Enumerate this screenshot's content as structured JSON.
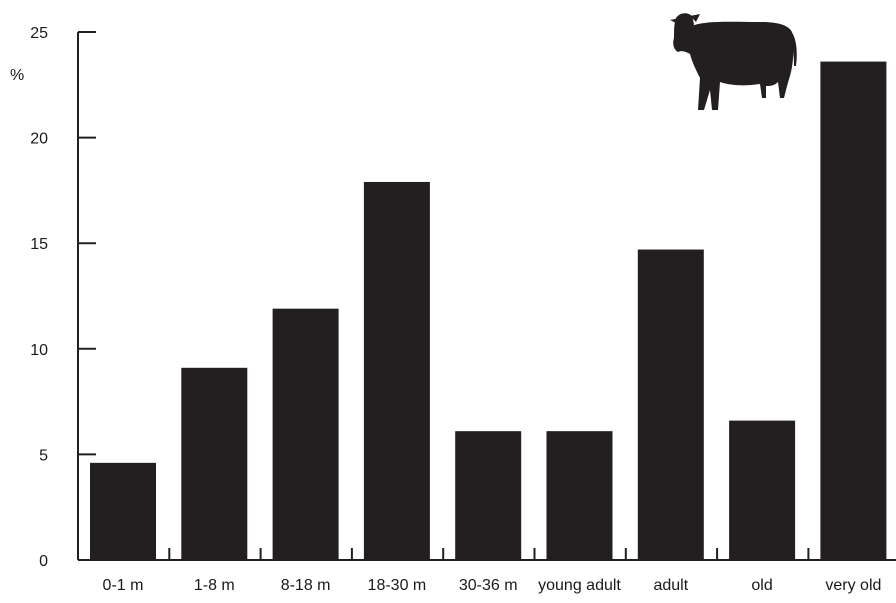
{
  "chart_data": {
    "type": "bar",
    "title": "",
    "xlabel": "",
    "ylabel": "%",
    "categories": [
      "0-1 m",
      "1-8 m",
      "8-18 m",
      "18-30 m",
      "30-36 m",
      "young adult",
      "adult",
      "old",
      "very old"
    ],
    "values": [
      4.6,
      9.1,
      11.9,
      17.9,
      6.1,
      6.1,
      14.7,
      6.6,
      23.6
    ],
    "ylim": [
      0,
      25
    ],
    "yticks": [
      0,
      5,
      10,
      15,
      20,
      25
    ],
    "grid": false,
    "legend": "none",
    "bar_color": "#231f20",
    "icon": "cow-silhouette-icon"
  }
}
